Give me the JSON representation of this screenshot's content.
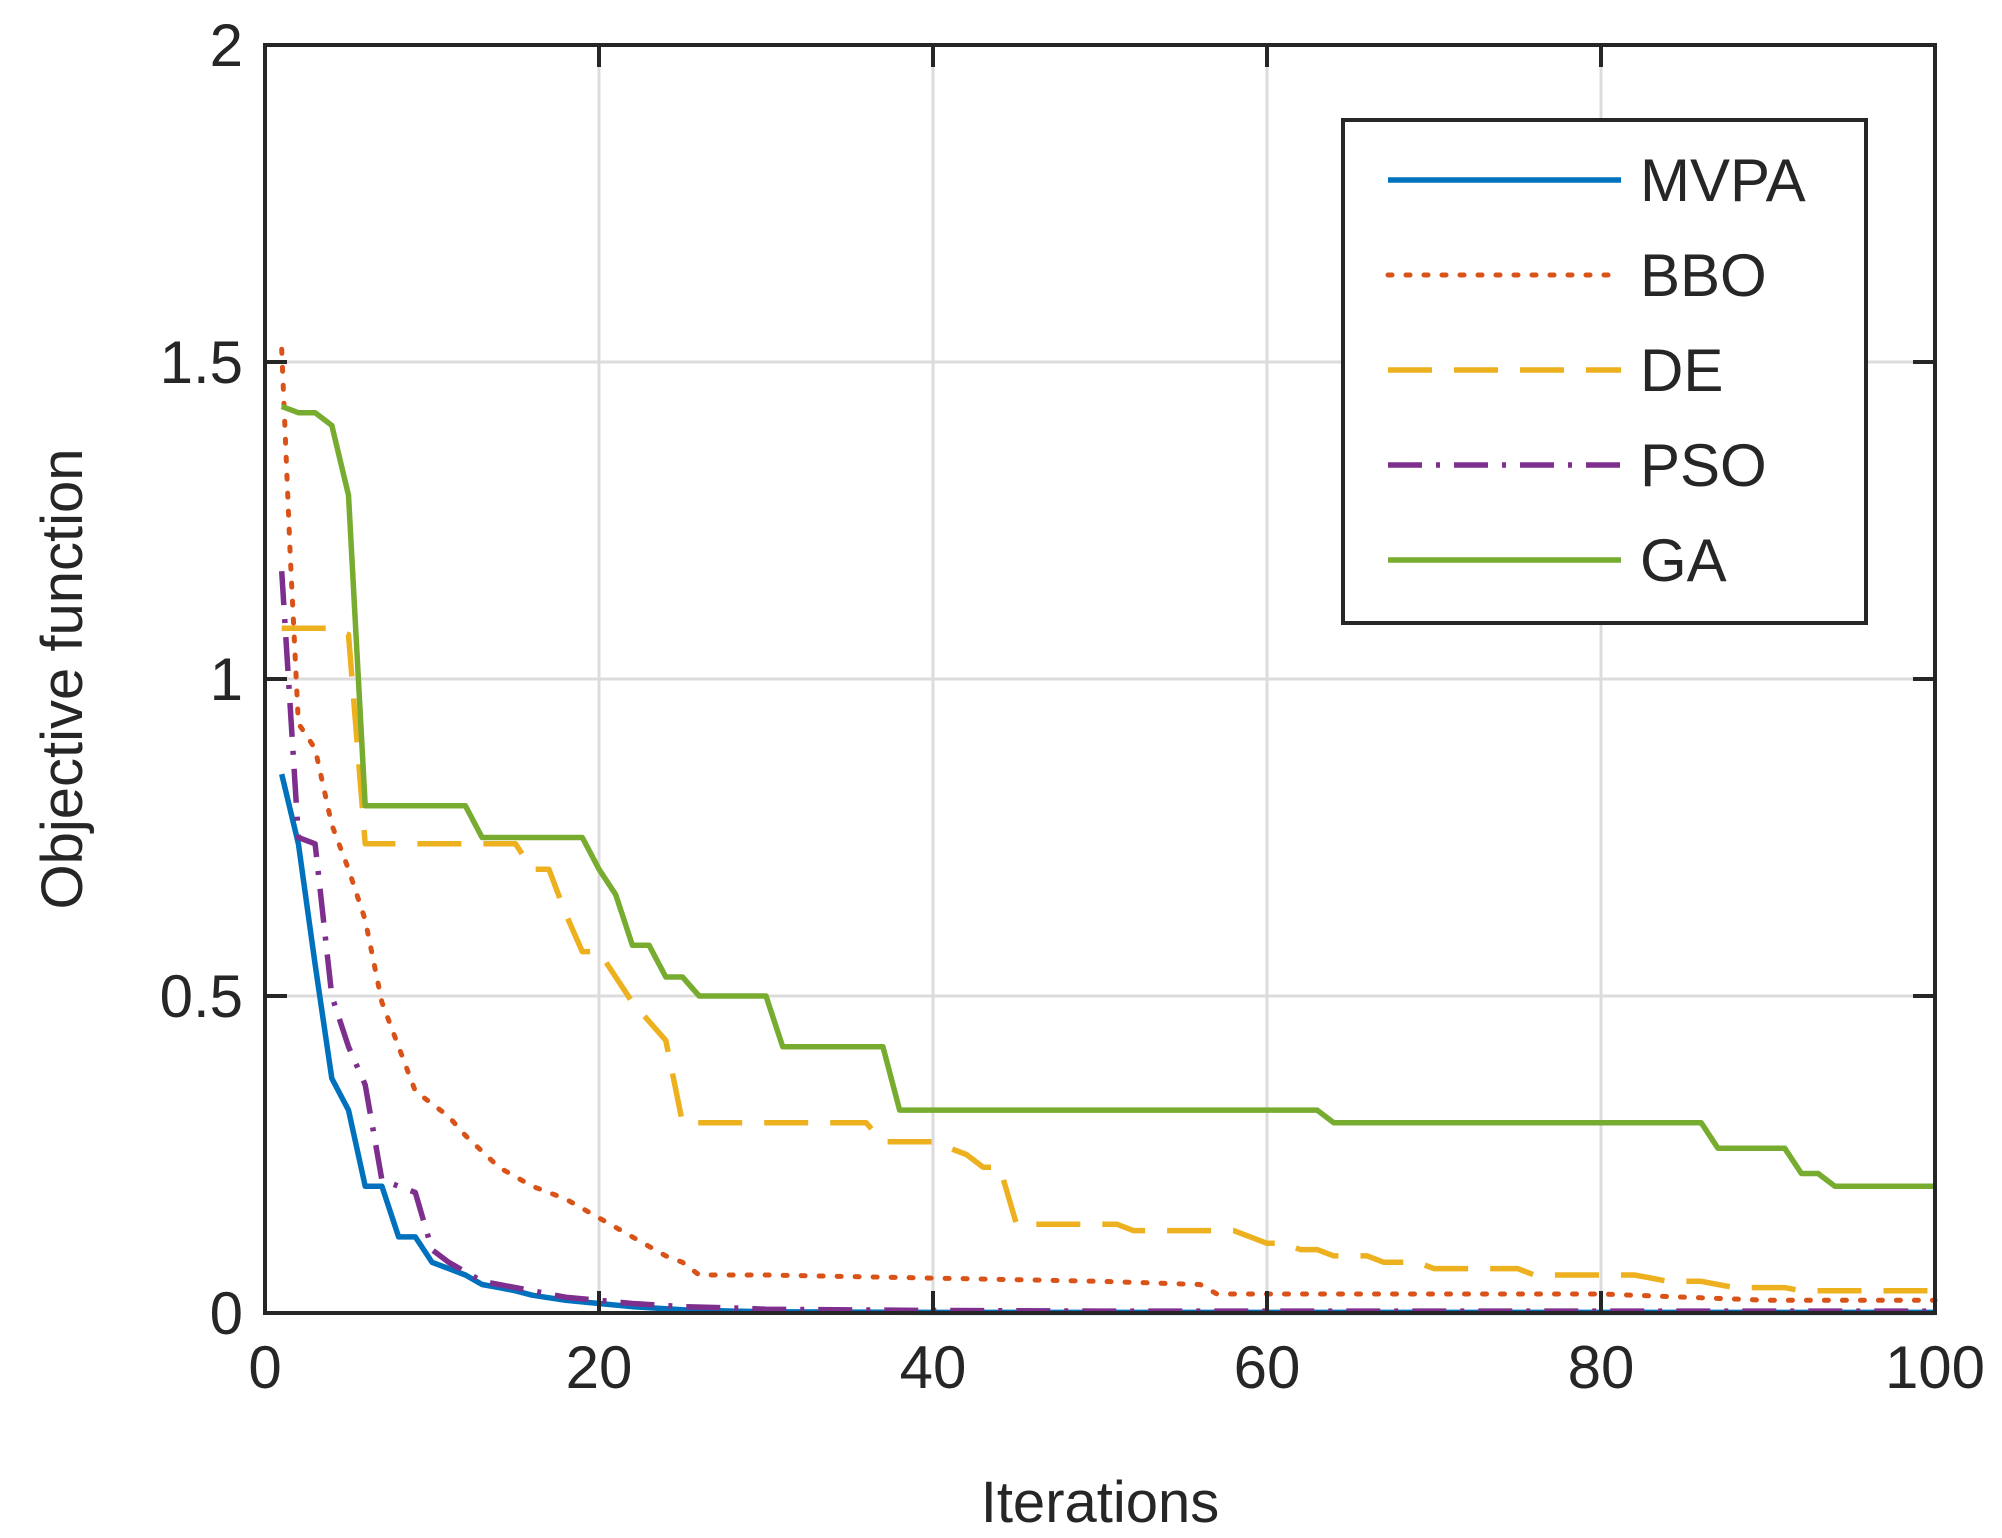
{
  "chart_data": {
    "type": "line",
    "title": "",
    "xlabel": "Iterations",
    "ylabel": "Objective function",
    "xlim": [
      0,
      100
    ],
    "ylim": [
      0,
      2
    ],
    "xticks": [
      0,
      20,
      40,
      60,
      80,
      100
    ],
    "yticks": [
      0,
      0.5,
      1,
      1.5,
      2
    ],
    "xtick_labels": [
      "0",
      "20",
      "40",
      "60",
      "80",
      "100"
    ],
    "ytick_labels": [
      "0",
      "0.5",
      "1",
      "1.5",
      "2"
    ],
    "grid": true,
    "legend_position": "top-right",
    "series": [
      {
        "name": "MVPA",
        "color": "#0072BD",
        "style": "solid",
        "x": [
          1,
          2,
          3,
          4,
          5,
          6,
          7,
          8,
          9,
          10,
          11,
          12,
          13,
          14,
          15,
          16,
          18,
          20,
          22,
          25,
          28,
          30,
          40,
          50,
          60,
          70,
          80,
          90,
          100
        ],
        "y": [
          0.85,
          0.74,
          0.55,
          0.37,
          0.32,
          0.2,
          0.2,
          0.12,
          0.12,
          0.08,
          0.07,
          0.06,
          0.045,
          0.04,
          0.035,
          0.028,
          0.02,
          0.015,
          0.01,
          0.005,
          0.003,
          0.002,
          0.001,
          0.001,
          0.001,
          0.001,
          0.001,
          0.001,
          0.001
        ]
      },
      {
        "name": "BBO",
        "color": "#D95319",
        "style": "dotted",
        "x": [
          1,
          1.5,
          2,
          3,
          4,
          5,
          6,
          7,
          8,
          9,
          10,
          11,
          12,
          14,
          16,
          18,
          20,
          22,
          24,
          25,
          26,
          30,
          40,
          50,
          56,
          57,
          70,
          80,
          90,
          100
        ],
        "y": [
          1.52,
          1.2,
          0.93,
          0.89,
          0.77,
          0.7,
          0.62,
          0.49,
          0.42,
          0.35,
          0.33,
          0.31,
          0.28,
          0.23,
          0.2,
          0.18,
          0.15,
          0.12,
          0.09,
          0.08,
          0.06,
          0.06,
          0.055,
          0.05,
          0.045,
          0.03,
          0.03,
          0.03,
          0.02,
          0.02
        ]
      },
      {
        "name": "DE",
        "color": "#EDB120",
        "style": "dashed",
        "x": [
          1,
          4,
          5,
          6,
          10,
          15,
          16,
          17,
          18,
          19,
          20,
          21,
          22,
          23,
          24,
          25,
          26,
          36,
          37,
          40,
          42,
          43,
          44,
          45,
          50,
          51,
          52,
          58,
          59,
          60,
          61,
          62,
          63,
          64,
          65,
          66,
          67,
          68,
          69,
          70,
          75,
          76,
          77,
          78,
          79,
          80,
          82,
          83,
          84,
          85,
          86,
          87,
          88,
          89,
          90,
          91,
          92,
          95,
          100
        ],
        "y": [
          1.08,
          1.08,
          1.07,
          0.74,
          0.74,
          0.74,
          0.7,
          0.7,
          0.63,
          0.57,
          0.57,
          0.53,
          0.49,
          0.46,
          0.43,
          0.3,
          0.3,
          0.3,
          0.27,
          0.27,
          0.25,
          0.23,
          0.23,
          0.14,
          0.14,
          0.14,
          0.13,
          0.13,
          0.12,
          0.11,
          0.11,
          0.1,
          0.1,
          0.09,
          0.09,
          0.09,
          0.08,
          0.08,
          0.08,
          0.07,
          0.07,
          0.06,
          0.06,
          0.06,
          0.06,
          0.06,
          0.06,
          0.055,
          0.05,
          0.05,
          0.05,
          0.045,
          0.04,
          0.04,
          0.04,
          0.04,
          0.035,
          0.035,
          0.035
        ]
      },
      {
        "name": "PSO",
        "color": "#7E2F8E",
        "style": "dashdot",
        "x": [
          1,
          2,
          3,
          4,
          5,
          6,
          7,
          8,
          9,
          10,
          11,
          12,
          13,
          14,
          15,
          16,
          18,
          20,
          22,
          25,
          28,
          30,
          40,
          50,
          60,
          70,
          80,
          90,
          100
        ],
        "y": [
          1.17,
          0.75,
          0.74,
          0.5,
          0.42,
          0.36,
          0.21,
          0.2,
          0.19,
          0.1,
          0.08,
          0.065,
          0.05,
          0.045,
          0.04,
          0.035,
          0.025,
          0.02,
          0.015,
          0.01,
          0.008,
          0.006,
          0.004,
          0.003,
          0.003,
          0.003,
          0.003,
          0.003,
          0.003
        ]
      },
      {
        "name": "GA",
        "color": "#77AC30",
        "style": "solid",
        "x": [
          1,
          2,
          3,
          4,
          5,
          6,
          7,
          10,
          12,
          13,
          14,
          15,
          16,
          19,
          20,
          21,
          22,
          23,
          24,
          25,
          26,
          27,
          28,
          29,
          30,
          31,
          36,
          37,
          38,
          62,
          63,
          64,
          86,
          87,
          88,
          90,
          91,
          92,
          93,
          94,
          100
        ],
        "y": [
          1.43,
          1.42,
          1.42,
          1.4,
          1.29,
          0.8,
          0.8,
          0.8,
          0.8,
          0.75,
          0.75,
          0.75,
          0.75,
          0.75,
          0.7,
          0.66,
          0.58,
          0.58,
          0.53,
          0.53,
          0.5,
          0.5,
          0.5,
          0.5,
          0.5,
          0.42,
          0.42,
          0.42,
          0.32,
          0.32,
          0.32,
          0.3,
          0.3,
          0.26,
          0.26,
          0.26,
          0.26,
          0.22,
          0.22,
          0.2,
          0.2
        ]
      }
    ]
  }
}
